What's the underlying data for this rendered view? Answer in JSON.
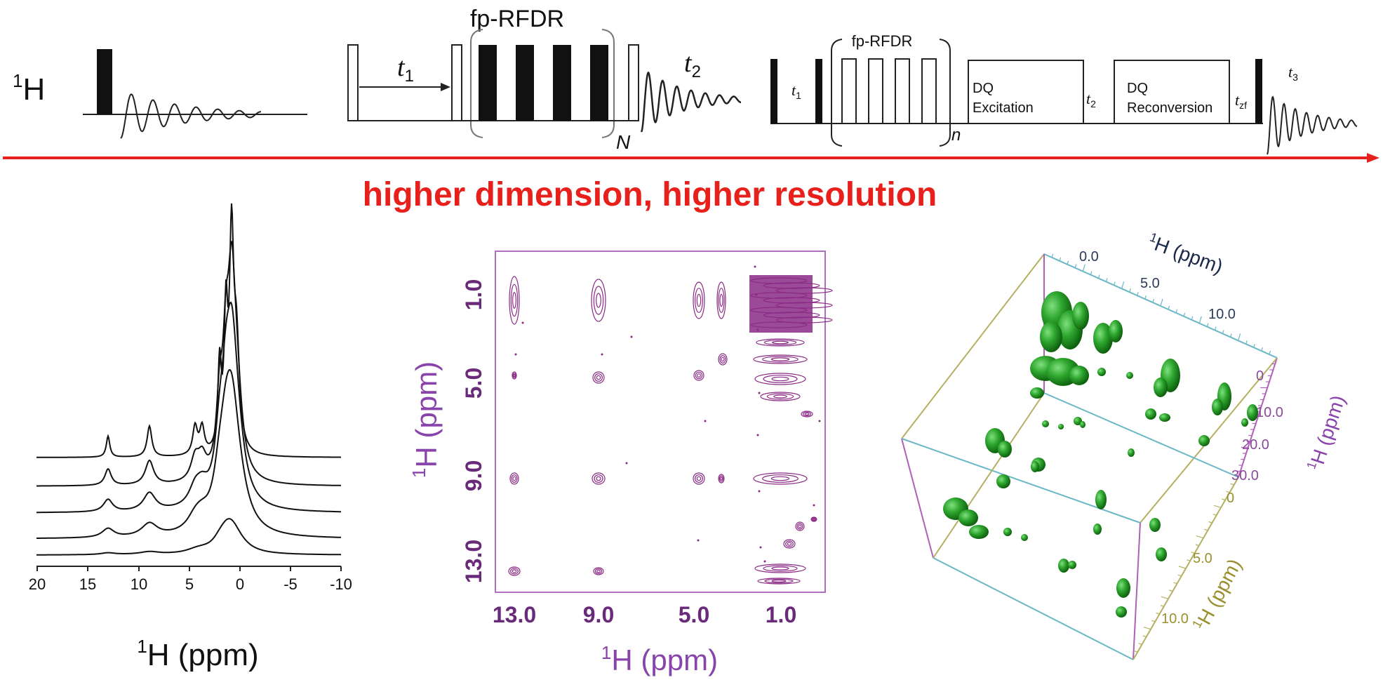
{
  "pulse_sequences": {
    "one_d": {
      "nucleus_label": "H",
      "nucleus_sup": "1"
    },
    "two_d": {
      "block_label": "fp-RFDR",
      "t1_label": "t",
      "t1_sub": "1",
      "t2_label": "t",
      "t2_sub": "2",
      "loop_label": "N"
    },
    "three_d": {
      "block_label": "fp-RFDR",
      "t1_label": "t",
      "t1_sub": "1",
      "loop_label": "n",
      "dq_excitation_line1": "DQ",
      "dq_excitation_line2": "Excitation",
      "t2_label": "t",
      "t2_sub": "2",
      "dq_reconversion_line1": "DQ",
      "dq_reconversion_line2": "Reconversion",
      "tzf_label": "t",
      "tzf_sub": "zf",
      "t3_label": "t",
      "t3_sub": "3"
    }
  },
  "arrow_caption": "higher dimension, higher resolution",
  "colors": {
    "arrow": "#e8201c",
    "contour": "#8a2a86",
    "spectrum2d_frame": "#b070c0",
    "axis_purple": "#8a4a9a",
    "axis_label_purple": "#8844aa",
    "cube_teal": "#6ab7c7",
    "cube_olive": "#b5b061",
    "cube_magenta": "#b15fb8",
    "blob_green": "#2a9a2a"
  },
  "spectrum_1d": {
    "x_ticks": [
      "20",
      "15",
      "10",
      "5",
      "0",
      "-5",
      "-10"
    ],
    "axis_label": "H (ppm)",
    "axis_label_sup": "1",
    "trace_count": 5
  },
  "spectrum_2d": {
    "x_ticks": [
      "13.0",
      "9.0",
      "5.0",
      "1.0"
    ],
    "y_ticks": [
      "1.0",
      "5.0",
      "9.0",
      "13.0"
    ],
    "x_label": "H (ppm)",
    "x_label_sup": "1",
    "y_label": "H (ppm)",
    "y_label_sup": "1"
  },
  "spectrum_3d": {
    "top_axis_ticks": [
      "0.0",
      "5.0",
      "10.0"
    ],
    "top_axis_label": "H (ppm)",
    "top_axis_label_sup": "1",
    "right_axis_ticks": [
      "0",
      "10.0",
      "20.0",
      "30.0"
    ],
    "right_axis_label": "H (ppm)",
    "right_axis_label_sup": "1",
    "bottom_axis_ticks": [
      "0",
      "5.0",
      "10.0"
    ],
    "bottom_axis_label": "H (ppm)",
    "bottom_axis_label_sup": "1"
  }
}
